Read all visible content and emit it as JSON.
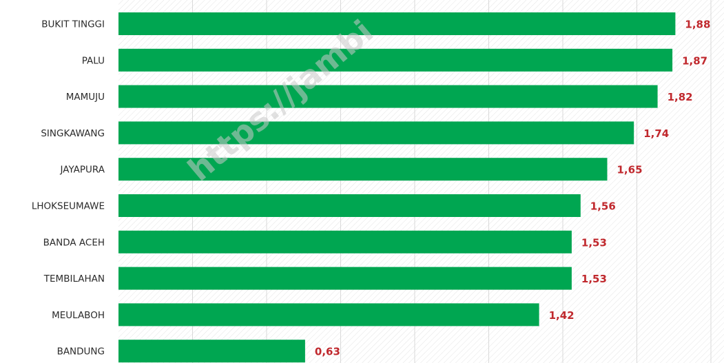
{
  "chart_data": {
    "type": "bar",
    "orientation": "horizontal",
    "categories": [
      "BUKIT TINGGI",
      "PALU",
      "MAMUJU",
      "SINGKAWANG",
      "JAYAPURA",
      "LHOKSEUMAWE",
      "BANDA ACEH",
      "TEMBILAHAN",
      "MEULABOH",
      "BANDUNG"
    ],
    "values": [
      1.88,
      1.87,
      1.82,
      1.74,
      1.65,
      1.56,
      1.53,
      1.53,
      1.42,
      0.63
    ],
    "value_labels": [
      "1,88",
      "1,87",
      "1,82",
      "1,74",
      "1,65",
      "1,56",
      "1,53",
      "1,53",
      "1,42",
      "0,63"
    ],
    "title": "",
    "xlabel": "",
    "ylabel": "",
    "xlim": [
      0,
      2
    ],
    "grid": true,
    "legend": "none"
  },
  "watermark_text": "https://jambi",
  "colors": {
    "bar": "#00a651",
    "value_label": "#c0282d",
    "grid": "#d9d9d9",
    "category_label": "#2b2b2b"
  }
}
